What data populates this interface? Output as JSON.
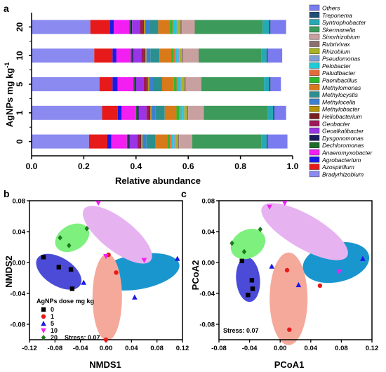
{
  "panels": {
    "a": "a",
    "b": "b",
    "c": "c"
  },
  "colors": {
    "Others": "#7b7bf0",
    "Treponema": "#1f4e79",
    "Syntrophobacter": "#26a9b5",
    "Skermanella": "#3c9a5a",
    "Sinorhizobium": "#c9a0a0",
    "Rubrivivax": "#8c7070",
    "Rhizobium": "#aab326",
    "Pseudomonas": "#7f9fd8",
    "Pelobacter": "#1ecad6",
    "Paludibacter": "#e36c3c",
    "Paenibacillus": "#2eb82e",
    "Methylomonas": "#d87a1a",
    "Methylocystis": "#2b8f8f",
    "Methylocella": "#3a7fd0",
    "Methylobacter": "#b7950b",
    "Heliobacterium": "#7a1f1f",
    "Geobacter": "#a0185a",
    "Geoalkalibacter": "#9b33e6",
    "Dysgonomonas": "#1a1a5c",
    "Dechloromonas": "#1e6b2a",
    "Anaeromyxobacter": "#f21ef2",
    "Agrobacterium": "#1a1ae6",
    "Azospirillum": "#e61a1a",
    "Bradyrhizobium": "#8a8af0",
    "ell_0": "#4b4bd8",
    "ell_1": "#f5a99a",
    "ell_5": "#1a96cf",
    "ell_10": "#e6b3f0",
    "ell_20": "#7ef07e"
  },
  "chart_data": [
    {
      "type": "bar",
      "orientation": "horizontal",
      "stacked": true,
      "categories": [
        "20",
        "10",
        "5",
        "1",
        "0"
      ],
      "ylabel": "AgNPs mg kg",
      "ylabel_sup": "-1",
      "xlabel": "Relative abundance",
      "xlim": [
        0,
        1
      ],
      "xticks": [
        "0.0",
        "0.2",
        "0.4",
        "0.6",
        "0.8",
        "1.0"
      ],
      "legend_position": "right",
      "series": [
        {
          "name": "Bradyrhizobium",
          "values": [
            0.225,
            0.24,
            0.26,
            0.27,
            0.22
          ]
        },
        {
          "name": "Azospirillum",
          "values": [
            0.075,
            0.07,
            0.05,
            0.06,
            0.07
          ]
        },
        {
          "name": "Agrobacterium",
          "values": [
            0.015,
            0.015,
            0.02,
            0.015,
            0.015
          ]
        },
        {
          "name": "Anaeromyxobacter",
          "values": [
            0.06,
            0.055,
            0.06,
            0.055,
            0.06
          ]
        },
        {
          "name": "Dechloromonas",
          "values": [
            0.005,
            0.005,
            0.005,
            0.005,
            0.005
          ]
        },
        {
          "name": "Dysgonomonas",
          "values": [
            0.005,
            0.005,
            0.005,
            0.005,
            0.005
          ]
        },
        {
          "name": "Geoalkalibacter",
          "values": [
            0.03,
            0.03,
            0.03,
            0.03,
            0.03
          ]
        },
        {
          "name": "Geobacter",
          "values": [
            0.01,
            0.01,
            0.01,
            0.01,
            0.01
          ]
        },
        {
          "name": "Heliobacterium",
          "values": [
            0.005,
            0.005,
            0.005,
            0.005,
            0.005
          ]
        },
        {
          "name": "Methylobacter",
          "values": [
            0.005,
            0.005,
            0.005,
            0.005,
            0.005
          ]
        },
        {
          "name": "Methylocella",
          "values": [
            0.015,
            0.015,
            0.015,
            0.015,
            0.015
          ]
        },
        {
          "name": "Methylocystis",
          "values": [
            0.035,
            0.035,
            0.035,
            0.035,
            0.035
          ]
        },
        {
          "name": "Methylomonas",
          "values": [
            0.045,
            0.045,
            0.045,
            0.045,
            0.045
          ]
        },
        {
          "name": "Paenibacillus",
          "values": [
            0.01,
            0.01,
            0.01,
            0.01,
            0.01
          ]
        },
        {
          "name": "Paludibacter",
          "values": [
            0.005,
            0.005,
            0.005,
            0.005,
            0.005
          ]
        },
        {
          "name": "Pelobacter",
          "values": [
            0.01,
            0.01,
            0.01,
            0.01,
            0.01
          ]
        },
        {
          "name": "Pseudomonas",
          "values": [
            0.005,
            0.005,
            0.005,
            0.005,
            0.005
          ]
        },
        {
          "name": "Rhizobium",
          "values": [
            0.01,
            0.01,
            0.01,
            0.01,
            0.01
          ]
        },
        {
          "name": "Rubrivivax",
          "values": [
            0.005,
            0.005,
            0.005,
            0.005,
            0.005
          ]
        },
        {
          "name": "Sinorhizobium",
          "values": [
            0.05,
            0.06,
            0.06,
            0.06,
            0.05
          ]
        },
        {
          "name": "Skermanella",
          "values": [
            0.26,
            0.24,
            0.24,
            0.245,
            0.265
          ]
        },
        {
          "name": "Syntrophobacter",
          "values": [
            0.025,
            0.02,
            0.02,
            0.02,
            0.02
          ]
        },
        {
          "name": "Treponema",
          "values": [
            0.005,
            0.005,
            0.005,
            0.005,
            0.005
          ]
        },
        {
          "name": "Others",
          "values": [
            0.06,
            0.055,
            0.04,
            0.045,
            0.075
          ]
        }
      ],
      "legend_order": [
        "Others",
        "Treponema",
        "Syntrophobacter",
        "Skermanella",
        "Sinorhizobium",
        "Rubrivivax",
        "Rhizobium",
        "Pseudomonas",
        "Pelobacter",
        "Paludibacter",
        "Paenibacillus",
        "Methylomonas",
        "Methylocystis",
        "Methylocella",
        "Methylobacter",
        "Heliobacterium",
        "Geobacter",
        "Geoalkalibacter",
        "Dysgonomonas",
        "Dechloromonas",
        "Anaeromyxobacter",
        "Agrobacterium",
        "Azospirillum",
        "Bradyrhizobium"
      ]
    },
    {
      "type": "scatter",
      "xlabel": "NMDS1",
      "ylabel": "NMDS2",
      "xlim": [
        -0.12,
        0.12
      ],
      "ylim": [
        -0.1,
        0.08
      ],
      "xticks": [
        "-0.12",
        "-0.08",
        "-0.04",
        "0.00",
        "0.04",
        "0.08",
        "0.12"
      ],
      "yticks": [
        "0.08",
        "0.04",
        "0.00",
        "-0.04",
        "-0.08"
      ],
      "legend_title": "AgNPs dose  mg kg",
      "legend_position": "bottom-left",
      "stress": "Stress: 0.07",
      "series": [
        {
          "name": "0",
          "marker": "square",
          "color": "#000000",
          "points": [
            [
              -0.098,
              0.007
            ],
            [
              -0.074,
              -0.006
            ],
            [
              -0.055,
              -0.009
            ],
            [
              -0.053,
              -0.034
            ]
          ]
        },
        {
          "name": "1",
          "marker": "circle",
          "color": "#e61a1a",
          "points": [
            [
              0.0,
              -0.1
            ],
            [
              0.016,
              -0.013
            ],
            [
              0.004,
              0.01
            ]
          ]
        },
        {
          "name": "5",
          "marker": "triangle",
          "color": "#1a1ae6",
          "points": [
            [
              -0.035,
              -0.026
            ],
            [
              0.045,
              -0.045
            ],
            [
              0.112,
              0.005
            ]
          ]
        },
        {
          "name": "10",
          "marker": "triangle-down",
          "color": "#f21ef2",
          "points": [
            [
              -0.012,
              0.077
            ],
            [
              0.0,
              0.008
            ],
            [
              0.06,
              0.003
            ]
          ]
        },
        {
          "name": "20",
          "marker": "diamond",
          "color": "#1e7a1e",
          "points": [
            [
              -0.072,
              0.032
            ],
            [
              -0.058,
              0.022
            ],
            [
              -0.03,
              0.044
            ]
          ]
        }
      ]
    },
    {
      "type": "scatter",
      "xlabel": "PCoA1",
      "ylabel": "PCoA2",
      "xlim": [
        -0.08,
        0.12
      ],
      "ylim": [
        -0.1,
        0.08
      ],
      "xticks": [
        "-0.08",
        "-0.04",
        "0.00",
        "0.04",
        "0.08",
        "0.12"
      ],
      "yticks": [
        "0.08",
        "0.04",
        "0.00",
        "-0.04",
        "-0.08"
      ],
      "stress": "Stress: 0.07",
      "series": [
        {
          "name": "0",
          "marker": "square",
          "color": "#000000",
          "points": [
            [
              -0.05,
              0.002
            ],
            [
              -0.037,
              -0.023
            ],
            [
              -0.036,
              -0.034
            ],
            [
              -0.042,
              -0.042
            ]
          ]
        },
        {
          "name": "1",
          "marker": "circle",
          "color": "#e61a1a",
          "points": [
            [
              0.012,
              -0.087
            ],
            [
              0.052,
              -0.03
            ],
            [
              0.009,
              -0.01
            ]
          ]
        },
        {
          "name": "5",
          "marker": "triangle",
          "color": "#1a1ae6",
          "points": [
            [
              -0.011,
              -0.005
            ],
            [
              0.024,
              -0.029
            ],
            [
              0.108,
              0.005
            ]
          ]
        },
        {
          "name": "10",
          "marker": "triangle-down",
          "color": "#f21ef2",
          "points": [
            [
              -0.014,
              0.072
            ],
            [
              0.006,
              0.077
            ],
            [
              0.077,
              -0.012
            ]
          ]
        },
        {
          "name": "20",
          "marker": "diamond",
          "color": "#1e7a1e",
          "points": [
            [
              -0.063,
              0.025
            ],
            [
              -0.047,
              0.014
            ],
            [
              -0.026,
              0.043
            ]
          ]
        }
      ]
    }
  ]
}
